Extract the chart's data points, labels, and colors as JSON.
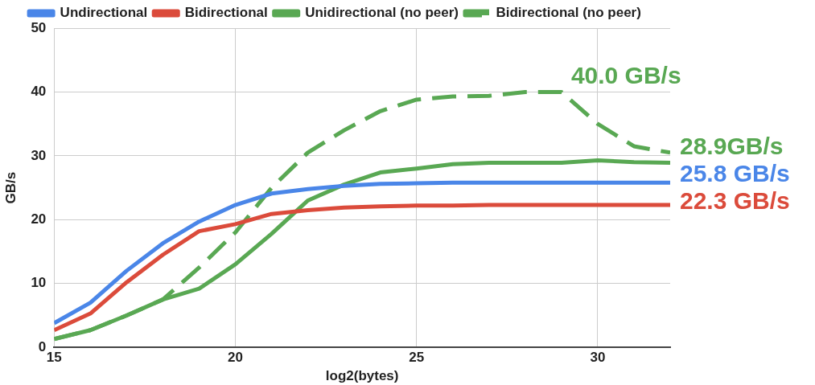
{
  "chart_data": {
    "type": "line",
    "xlabel": "log2(bytes)",
    "ylabel": "GB/s",
    "x": [
      15,
      16,
      17,
      18,
      19,
      20,
      21,
      22,
      23,
      24,
      25,
      26,
      27,
      28,
      29,
      30,
      31,
      32
    ],
    "series": [
      {
        "name": "Undirectional",
        "color": "#4a86e8",
        "values": [
          3.8,
          7,
          12,
          16.3,
          19.7,
          22.3,
          24.1,
          24.8,
          25.3,
          25.6,
          25.7,
          25.8,
          25.8,
          25.8,
          25.8,
          25.8,
          25.8,
          25.8
        ],
        "value_labels": [
          null,
          null,
          null,
          null,
          null,
          null,
          null,
          null,
          null,
          null,
          null,
          null,
          null,
          null,
          null,
          null,
          null,
          "25.8 GB/s"
        ]
      },
      {
        "name": "Bidirectional",
        "color": "#db4b3b",
        "values": [
          2.7,
          5.3,
          10.2,
          14.5,
          18.2,
          19.3,
          20.9,
          21.5,
          21.9,
          22.1,
          22.2,
          22.2,
          22.3,
          22.3,
          22.3,
          22.3,
          22.3,
          22.3
        ],
        "value_labels": [
          null,
          null,
          null,
          null,
          null,
          null,
          null,
          null,
          null,
          null,
          null,
          null,
          null,
          null,
          null,
          null,
          null,
          "22.3 GB/s"
        ]
      },
      {
        "name": "Unidirectional (no peer)",
        "color": "#59a853",
        "values": [
          1.3,
          2.7,
          5,
          7.5,
          9.2,
          13,
          17.8,
          23,
          25.5,
          27.4,
          28,
          28.7,
          28.9,
          28.9,
          28.9,
          29.3,
          29,
          28.9
        ],
        "value_labels": [
          null,
          null,
          null,
          null,
          null,
          null,
          null,
          null,
          null,
          null,
          null,
          null,
          null,
          null,
          null,
          null,
          null,
          "28.9GB/s"
        ]
      },
      {
        "name": "Bidirectional (no peer)",
        "color": "#59a853",
        "line_style": "dashed",
        "values": [
          1.3,
          2.7,
          5,
          7.5,
          12.5,
          18,
          25,
          30.5,
          34,
          37,
          38.8,
          39.3,
          39.4,
          40,
          40.0,
          35,
          31.5,
          30.5
        ],
        "value_labels": [
          null,
          null,
          null,
          null,
          null,
          null,
          null,
          null,
          null,
          null,
          null,
          null,
          null,
          null,
          "40.0 GB/s",
          null,
          null,
          null
        ]
      }
    ],
    "xlim": [
      15,
      32
    ],
    "xticks": [
      15,
      20,
      25,
      30
    ],
    "ylim": [
      0,
      50
    ],
    "yticks": [
      0,
      10,
      20,
      30,
      40,
      50
    ],
    "grid": true,
    "legend": "top",
    "marker": "none"
  }
}
